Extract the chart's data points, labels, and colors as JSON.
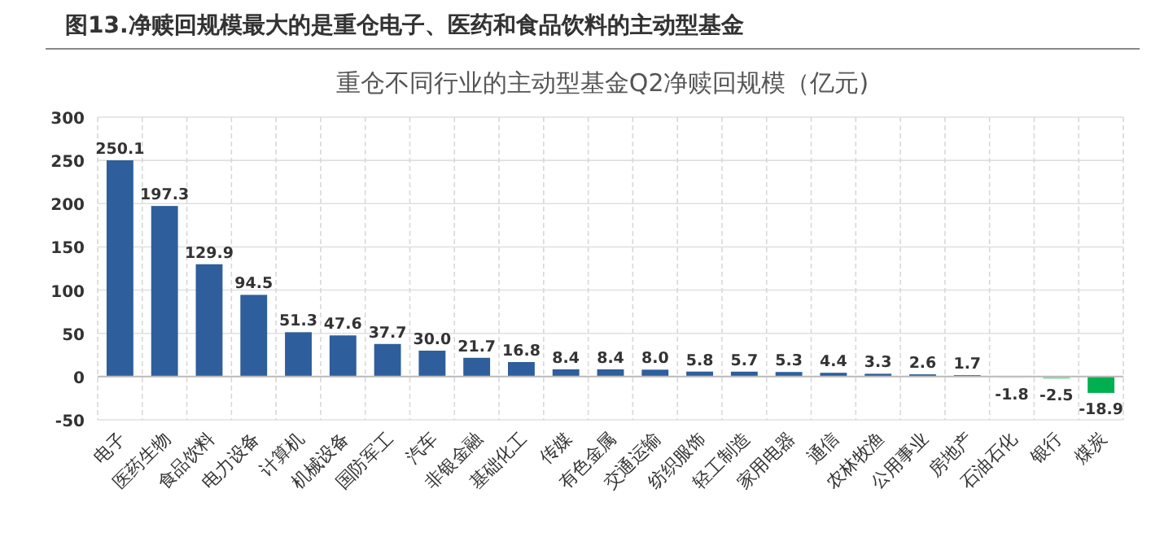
{
  "chart_data": {
    "type": "bar",
    "title": "图13.净赎回规模最大的是重仓电子、医药和食品饮料的主动型基金",
    "subtitle": "重仓不同行业的主动型基金Q2净赎回规模（亿元)",
    "categories": [
      "电子",
      "医药生物",
      "食品饮料",
      "电力设备",
      "计算机",
      "机械设备",
      "国防军工",
      "汽车",
      "非银金融",
      "基础化工",
      "传媒",
      "有色金属",
      "交通运输",
      "纺织服饰",
      "轻工制造",
      "家用电器",
      "通信",
      "农林牧渔",
      "公用事业",
      "房地产",
      "石油石化",
      "银行",
      "煤炭"
    ],
    "values": [
      250.1,
      197.3,
      129.9,
      94.5,
      51.3,
      47.6,
      37.7,
      30.0,
      21.7,
      16.8,
      8.4,
      8.4,
      8.0,
      5.8,
      5.7,
      5.3,
      4.4,
      3.3,
      2.6,
      1.7,
      -1.8,
      -2.5,
      -18.9
    ],
    "colors": [
      "#2e5e9c",
      "#2e5e9c",
      "#2e5e9c",
      "#2e5e9c",
      "#2e5e9c",
      "#2e5e9c",
      "#2e5e9c",
      "#2e5e9c",
      "#2e5e9c",
      "#2e5e9c",
      "#2e5e9c",
      "#2e5e9c",
      "#2e5e9c",
      "#2e5e9c",
      "#2e5e9c",
      "#2e5e9c",
      "#2e5e9c",
      "#2e5e9c",
      "#2e5e9c",
      "#2e5e9c",
      "#e6f2ea",
      "#8fd4ad",
      "#00b050"
    ],
    "ylim": [
      -50,
      300
    ],
    "yticks": [
      -50,
      0,
      50,
      100,
      150,
      200,
      250,
      300
    ],
    "value_labels": [
      "250.1",
      "197.3",
      "129.9",
      "94.5",
      "51.3",
      "47.6",
      "37.7",
      "30.0",
      "21.7",
      "16.8",
      "8.4",
      "8.4",
      "8.0",
      "5.8",
      "5.7",
      "5.3",
      "4.4",
      "3.3",
      "2.6",
      "1.7",
      "-1.8",
      "-2.5",
      "-18.9"
    ],
    "grid": true
  }
}
